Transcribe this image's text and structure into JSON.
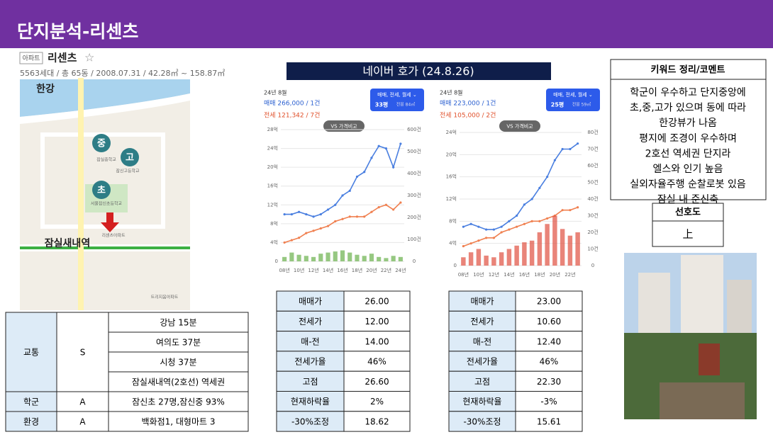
{
  "header": {
    "title": "단지분석-리센츠"
  },
  "complex": {
    "tag": "아파트",
    "name": "리센츠",
    "star": "☆",
    "info": "5563세대 / 총 65동 / 2008.07.31 / 42.28㎡ ~ 158.87㎡"
  },
  "map": {
    "river": "한강",
    "station": "잠실새내역",
    "markers": [
      "중",
      "고",
      "초"
    ],
    "places": [
      "잠실중학교",
      "잠신고등학교",
      "서울잠신초등학교",
      "리센츠아파트",
      "트리지움아파트"
    ]
  },
  "naver": {
    "title": "네이버 호가 (24.8.26)"
  },
  "charts": [
    {
      "type": "line",
      "month": "24년 8월",
      "sale": "매매 266,000 / 1건",
      "jeonse": "전세 121,342 / 7건",
      "filter": "매매, 전세, 월세 ⌄",
      "size": "33평",
      "area": "전용 84㎡",
      "compare": "VS 가격비교",
      "categories": [
        "08년",
        null,
        "10년",
        null,
        "12년",
        null,
        "14년",
        null,
        "16년",
        null,
        "18년",
        null,
        "20년",
        null,
        "22년",
        null,
        "24년"
      ],
      "ylim": [
        0,
        28
      ],
      "yticks": [
        0,
        {
          "value": 4,
          "label": "4억"
        },
        {
          "value": 8,
          "label": "8억"
        },
        {
          "value": 12,
          "label": "12억"
        },
        {
          "value": 16,
          "label": "16억"
        },
        {
          "value": 20,
          "label": "20억"
        },
        {
          "value": 24,
          "label": "24억"
        },
        {
          "value": 28,
          "label": "28억"
        }
      ],
      "y2lim": [
        0,
        600
      ],
      "y2ticks": [
        0,
        {
          "value": 100,
          "label": "100건"
        },
        {
          "value": 200,
          "label": "200건"
        },
        {
          "value": 300,
          "label": "300건"
        },
        {
          "value": 400,
          "label": "400건"
        },
        {
          "value": 500,
          "label": "500건"
        },
        {
          "value": 600,
          "label": "600건"
        }
      ],
      "series": [
        {
          "color": "#4a7fe0",
          "values": [
            10,
            10,
            10.5,
            10,
            9.5,
            10,
            11,
            12,
            14,
            15,
            18,
            19,
            22,
            24.5,
            24,
            20,
            25
          ]
        },
        {
          "color": "#f08050",
          "values": [
            4,
            4.5,
            5,
            6,
            6.5,
            7,
            7.5,
            8.5,
            9,
            9.5,
            9.5,
            9.5,
            10.5,
            11.5,
            12,
            11,
            12.5
          ]
        },
        {
          "color": "#6ab04c",
          "type": "bar",
          "axis": "y2",
          "values": [
            20,
            40,
            30,
            25,
            20,
            35,
            40,
            45,
            50,
            40,
            30,
            25,
            35,
            20,
            15,
            25,
            20
          ]
        }
      ]
    },
    {
      "type": "line",
      "month": "24년 8월",
      "sale": "매매 223,000 / 1건",
      "jeonse": "전세 105,000 / 2건",
      "filter": "매매, 전세, 월세 ⌄",
      "size": "25평",
      "area": "전용 59㎡",
      "compare": "VS 가격비교",
      "categories": [
        "08년",
        null,
        "10년",
        null,
        "12년",
        null,
        "14년",
        null,
        "16년",
        null,
        "18년",
        null,
        "20년",
        null,
        "22년",
        null
      ],
      "ylim": [
        0,
        24
      ],
      "yticks": [
        0,
        {
          "value": 4,
          "label": "4억"
        },
        {
          "value": 8,
          "label": "8억"
        },
        {
          "value": 12,
          "label": "12억"
        },
        {
          "value": 16,
          "label": "16억"
        },
        {
          "value": 20,
          "label": "20억"
        },
        {
          "value": 24,
          "label": "24억"
        }
      ],
      "y2lim": [
        0,
        80
      ],
      "y2ticks": [
        0,
        {
          "value": 10,
          "label": "10건"
        },
        {
          "value": 20,
          "label": "20건"
        },
        {
          "value": 30,
          "label": "30건"
        },
        {
          "value": 40,
          "label": "40건"
        },
        {
          "value": 50,
          "label": "50건"
        },
        {
          "value": 60,
          "label": "60건"
        },
        {
          "value": 70,
          "label": "70건"
        },
        {
          "value": 80,
          "label": "80건"
        }
      ],
      "series": [
        {
          "color": "#4a7fe0",
          "values": [
            7,
            7.5,
            7,
            6.5,
            6.5,
            7,
            8,
            9,
            11,
            12,
            14,
            16,
            19,
            21,
            21,
            22
          ]
        },
        {
          "color": "#f08050",
          "values": [
            3.5,
            4,
            4.5,
            5,
            5,
            6,
            6.5,
            7,
            7.5,
            8,
            8,
            8.5,
            9,
            10,
            10,
            10.5
          ]
        },
        {
          "color": "#e05040",
          "type": "bar",
          "axis": "y2",
          "values": [
            5,
            8,
            10,
            6,
            5,
            8,
            10,
            12,
            14,
            15,
            20,
            25,
            30,
            22,
            18,
            20
          ]
        }
      ]
    }
  ],
  "transport": {
    "label": "교통",
    "grade": "S",
    "items": [
      "강남 15분",
      "여의도 37분",
      "시청 37분",
      "잠실새내역(2호선) 역세권"
    ]
  },
  "grades": [
    [
      "학군",
      "A",
      "잠신초 27명,잠신중 93%"
    ],
    [
      "환경",
      "A",
      "백화점1, 대형마트 3"
    ]
  ],
  "price_tables": [
    {
      "rows": [
        [
          "매매가",
          "26.00"
        ],
        [
          "전세가",
          "12.00"
        ],
        [
          "매-전",
          "14.00"
        ],
        [
          "전세가율",
          "46%"
        ],
        [
          "고점",
          "26.60"
        ],
        [
          "현재하락율",
          "2%"
        ],
        [
          "-30%조정",
          "18.62"
        ]
      ]
    },
    {
      "rows": [
        [
          "매매가",
          "23.00"
        ],
        [
          "전세가",
          "10.60"
        ],
        [
          "매-전",
          "12.40"
        ],
        [
          "전세가율",
          "46%"
        ],
        [
          "고점",
          "22.30"
        ],
        [
          "현재하락율",
          "-3%"
        ],
        [
          "-30%조정",
          "15.61"
        ]
      ]
    }
  ],
  "comment": {
    "title": "키워드 정리/코멘트",
    "lines": [
      "학군이 우수하고 단지중앙에",
      "초,중,고가 있으며 동에 따라",
      "한강뷰가 나옴",
      "평지에 조경이 우수하며",
      "2호선 역세권 단지라",
      "엘스와 인기 높음",
      "실외자율주행 순찰로봇 있음",
      "잠실 내 준신축"
    ]
  },
  "preference": {
    "title": "선호도",
    "value": "上"
  }
}
